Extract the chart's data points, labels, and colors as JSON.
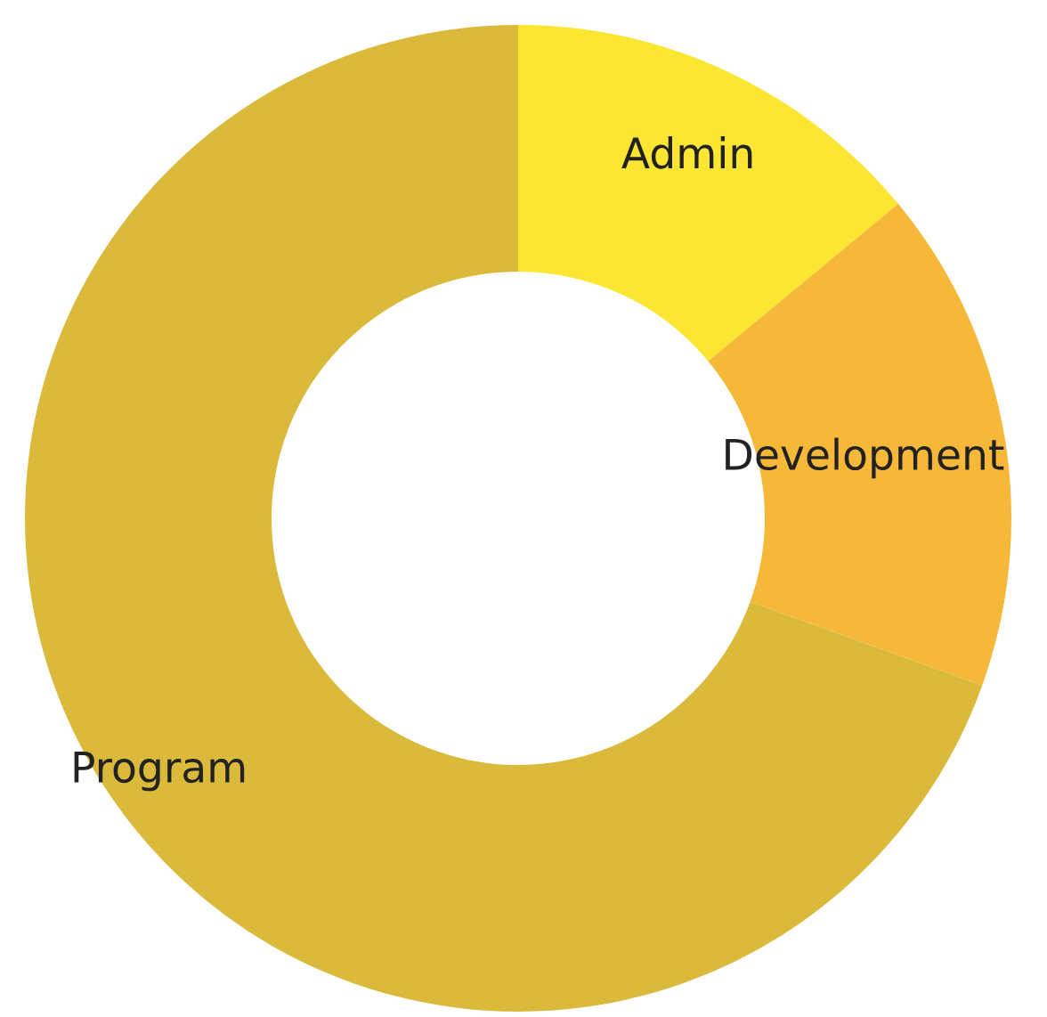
{
  "chart_data": {
    "type": "donut",
    "categories": [
      "Admin",
      "Development",
      "Program"
    ],
    "values": [
      14,
      16.5,
      69.5
    ],
    "colors": [
      "#fde631",
      "#f6b839",
      "#dbb93b"
    ]
  }
}
